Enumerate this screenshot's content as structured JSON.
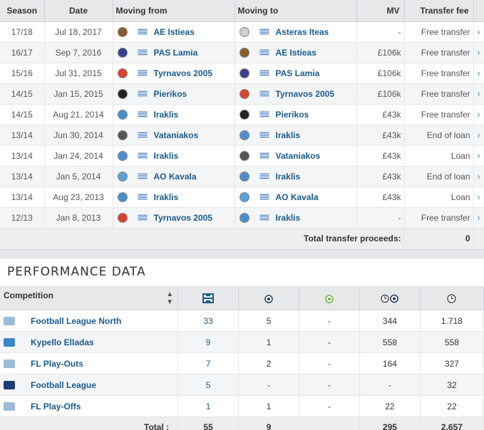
{
  "transfers": {
    "headers": {
      "season": "Season",
      "date": "Date",
      "from": "Moving from",
      "to": "Moving to",
      "mv": "MV",
      "fee": "Transfer fee"
    },
    "rows": [
      {
        "season": "17/18",
        "date": "Jul 18, 2017",
        "from": "AE Istieas",
        "to": "Asteras Iteas",
        "mv": "-",
        "fee": "Free transfer",
        "from_color": "#8b5a2b",
        "to_color": "#cfcfcf"
      },
      {
        "season": "16/17",
        "date": "Sep 7, 2016",
        "from": "PAS Lamia",
        "to": "AE Istieas",
        "mv": "£106k",
        "fee": "Free transfer",
        "from_color": "#3a3f8f",
        "to_color": "#8b5a2b"
      },
      {
        "season": "15/16",
        "date": "Jul 31, 2015",
        "from": "Tyrnavos 2005",
        "to": "PAS Lamia",
        "mv": "£106k",
        "fee": "Free transfer",
        "from_color": "#d8442a",
        "to_color": "#3a3f8f"
      },
      {
        "season": "14/15",
        "date": "Jan 15, 2015",
        "from": "Pierikos",
        "to": "Tyrnavos 2005",
        "mv": "£106k",
        "fee": "Free transfer",
        "from_color": "#222222",
        "to_color": "#d8442a"
      },
      {
        "season": "14/15",
        "date": "Aug 21, 2014",
        "from": "Iraklis",
        "to": "Pierikos",
        "mv": "£43k",
        "fee": "Free transfer",
        "from_color": "#4a8fd0",
        "to_color": "#222222"
      },
      {
        "season": "13/14",
        "date": "Jun 30, 2014",
        "from": "Vataniakos",
        "to": "Iraklis",
        "mv": "£43k",
        "fee": "End of loan",
        "from_color": "#555555",
        "to_color": "#4a8fd0"
      },
      {
        "season": "13/14",
        "date": "Jan 24, 2014",
        "from": "Iraklis",
        "to": "Vataniakos",
        "mv": "£43k",
        "fee": "Loan",
        "from_color": "#4a8fd0",
        "to_color": "#555555"
      },
      {
        "season": "13/14",
        "date": "Jan 5, 2014",
        "from": "AO Kavala",
        "to": "Iraklis",
        "mv": "£43k",
        "fee": "End of loan",
        "from_color": "#5aa0d8",
        "to_color": "#4a8fd0"
      },
      {
        "season": "13/14",
        "date": "Aug 23, 2013",
        "from": "Iraklis",
        "to": "AO Kavala",
        "mv": "£43k",
        "fee": "Loan",
        "from_color": "#4a8fd0",
        "to_color": "#5aa0d8"
      },
      {
        "season": "12/13",
        "date": "Jan 8, 2013",
        "from": "Tyrnavos 2005",
        "to": "Iraklis",
        "mv": "-",
        "fee": "Free transfer",
        "from_color": "#d8442a",
        "to_color": "#4a8fd0"
      }
    ],
    "total_label": "Total transfer proceeds:",
    "total_value": "0"
  },
  "performance": {
    "title": "PERFORMANCE DATA",
    "headers": {
      "competition": "Competition"
    },
    "header_icons": [
      "appearances-icon",
      "goals-icon",
      "assists-icon",
      "minutes-per-goal-icon",
      "minutes-played-icon"
    ],
    "rows": [
      {
        "name": "Football League North",
        "apps": "33",
        "goals": "5",
        "assists": "-",
        "mpg": "344",
        "mins": "1.718"
      },
      {
        "name": "Kypello Elladas",
        "apps": "9",
        "goals": "1",
        "assists": "-",
        "mpg": "558",
        "mins": "558"
      },
      {
        "name": "FL Play-Outs",
        "apps": "7",
        "goals": "2",
        "assists": "-",
        "mpg": "164",
        "mins": "327"
      },
      {
        "name": "Football League",
        "apps": "5",
        "goals": "-",
        "assists": "-",
        "mpg": "-",
        "mins": "32"
      },
      {
        "name": "FL Play-Offs",
        "apps": "1",
        "goals": "1",
        "assists": "-",
        "mpg": "22",
        "mins": "22"
      }
    ],
    "total": {
      "label": "Total :",
      "apps": "55",
      "goals": "9",
      "assists": "",
      "mpg": "295",
      "mins": "2.657"
    }
  }
}
